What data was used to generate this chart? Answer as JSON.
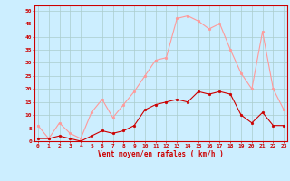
{
  "hours": [
    0,
    1,
    2,
    3,
    4,
    5,
    6,
    7,
    8,
    9,
    10,
    11,
    12,
    13,
    14,
    15,
    16,
    17,
    18,
    19,
    20,
    21,
    22,
    23
  ],
  "vent_moyen": [
    1,
    1,
    2,
    1,
    0,
    2,
    4,
    3,
    4,
    6,
    12,
    14,
    15,
    16,
    15,
    19,
    18,
    19,
    18,
    10,
    7,
    11,
    6,
    6
  ],
  "rafales": [
    6,
    1,
    7,
    3,
    1,
    11,
    16,
    9,
    14,
    19,
    25,
    31,
    32,
    47,
    48,
    46,
    43,
    45,
    35,
    26,
    20,
    42,
    20,
    12
  ],
  "color_moyen": "#cc0000",
  "color_rafales": "#ff9999",
  "bg_color": "#cceeff",
  "grid_color": "#aacccc",
  "xlabel": "Vent moyen/en rafales ( km/h )",
  "yticks": [
    0,
    5,
    10,
    15,
    20,
    25,
    30,
    35,
    40,
    45,
    50
  ],
  "ylim": [
    0,
    52
  ],
  "xlim": [
    -0.3,
    23.3
  ]
}
